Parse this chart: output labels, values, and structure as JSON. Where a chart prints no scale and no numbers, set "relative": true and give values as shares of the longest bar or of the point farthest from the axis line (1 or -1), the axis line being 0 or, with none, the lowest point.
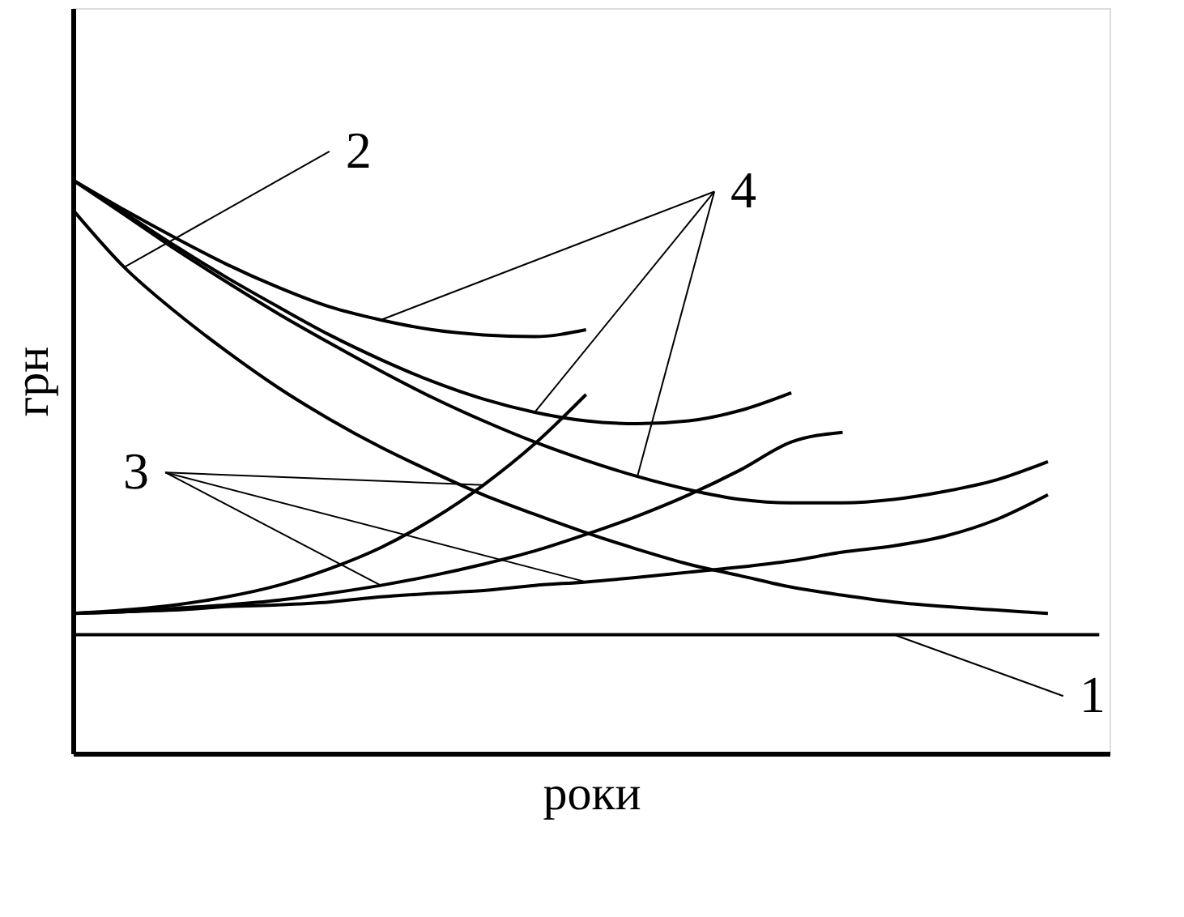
{
  "chart_data": {
    "type": "line",
    "relative": true,
    "xlabel": "роки",
    "ylabel": "грн",
    "legend": false,
    "annotations": [
      "1",
      "2",
      "3",
      "4"
    ],
    "grid": false,
    "marker": "none",
    "line_style": "solid",
    "categories": [
      null,
      null,
      null,
      null,
      null,
      null,
      null,
      null,
      null,
      null,
      null,
      null,
      null,
      null,
      null,
      null,
      null,
      null,
      null,
      null,
      null
    ],
    "series": [
      {
        "color": "#000000",
        "values": [
          0.207,
          0.207,
          0.207,
          0.207,
          0.207,
          0.207,
          0.207,
          0.207,
          0.207,
          0.207,
          0.207,
          0.207,
          0.207,
          0.207,
          0.207,
          0.207,
          0.207,
          0.207,
          0.207,
          0.207,
          0.207
        ]
      },
      {
        "color": "#000000",
        "values": [
          0.948,
          0.848,
          0.77,
          0.701,
          0.638,
          0.583,
          0.534,
          0.491,
          0.451,
          0.417,
          0.385,
          0.356,
          0.33,
          0.31,
          0.29,
          0.276,
          0.264,
          0.256,
          0.25,
          0.244,
          null
        ]
      },
      {
        "color": "#000000",
        "values": [
          0.244,
          0.25,
          0.259,
          0.273,
          0.293,
          0.322,
          0.359,
          0.408,
          0.468,
          0.54,
          0.626,
          null,
          null,
          null,
          null,
          null,
          null,
          null,
          null,
          null,
          null
        ]
      },
      {
        "color": "#000000",
        "values": [
          0.244,
          0.247,
          0.253,
          0.259,
          0.267,
          0.279,
          0.293,
          0.31,
          0.33,
          0.353,
          0.382,
          0.414,
          0.451,
          0.494,
          0.543,
          0.56,
          null,
          null,
          null,
          null,
          null
        ]
      },
      {
        "color": "#000000",
        "values": [
          0.244,
          0.247,
          0.25,
          0.256,
          0.259,
          0.264,
          0.273,
          0.279,
          0.284,
          0.293,
          0.299,
          0.307,
          0.316,
          0.325,
          0.336,
          0.351,
          0.362,
          0.379,
          0.408,
          0.451,
          null
        ]
      },
      {
        "color": "#000000",
        "values": [
          1.0,
          0.948,
          0.899,
          0.853,
          0.813,
          0.779,
          0.756,
          0.739,
          0.73,
          0.727,
          0.739,
          null,
          null,
          null,
          null,
          null,
          null,
          null,
          null,
          null,
          null
        ]
      },
      {
        "color": "#000000",
        "values": [
          1.0,
          0.943,
          0.885,
          0.83,
          0.779,
          0.73,
          0.687,
          0.649,
          0.618,
          0.595,
          0.58,
          0.575,
          0.58,
          0.598,
          0.629,
          null,
          null,
          null,
          null,
          null,
          null
        ]
      },
      {
        "color": "#000000",
        "values": [
          1.0,
          0.94,
          0.879,
          0.822,
          0.767,
          0.716,
          0.667,
          0.621,
          0.58,
          0.543,
          0.511,
          0.483,
          0.46,
          0.443,
          0.437,
          0.437,
          0.443,
          0.457,
          0.477,
          0.509,
          null
        ]
      }
    ]
  }
}
